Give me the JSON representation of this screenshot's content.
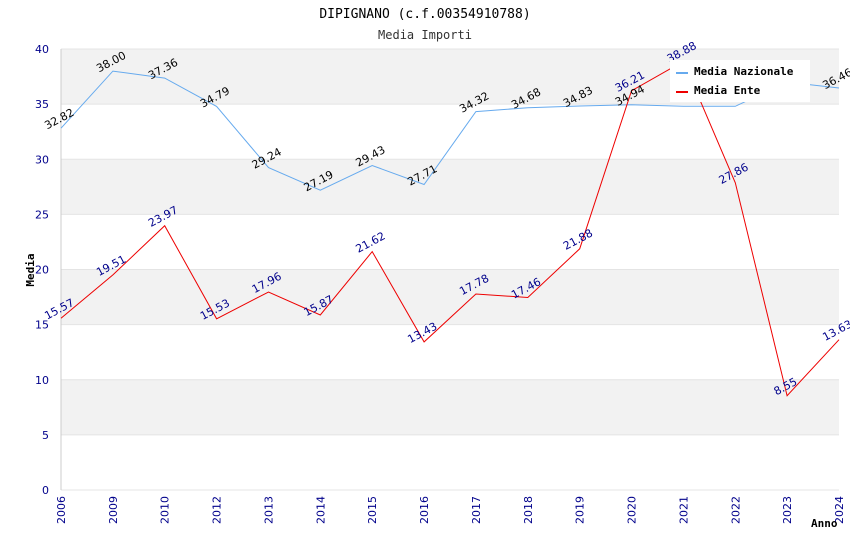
{
  "chart_data": {
    "type": "line",
    "title": "DIPIGNANO (c.f.00354910788)",
    "subtitle": "Media Importi",
    "xlabel": "Anno",
    "ylabel": "Media",
    "ylim": [
      0,
      40
    ],
    "yticks": [
      0,
      5,
      10,
      15,
      20,
      25,
      30,
      35,
      40
    ],
    "grid": "horizontal alternating bands",
    "legend_position": "top-right",
    "categories": [
      "2006",
      "2009",
      "2010",
      "2012",
      "2013",
      "2014",
      "2015",
      "2016",
      "2017",
      "2018",
      "2019",
      "2020",
      "2021",
      "2022",
      "2023",
      "2024"
    ],
    "series": [
      {
        "name": "Media Nazionale",
        "color": "#66aaee",
        "values": [
          32.82,
          38.0,
          37.36,
          34.79,
          29.24,
          27.19,
          29.43,
          27.71,
          34.32,
          34.68,
          34.83,
          34.94,
          34.8,
          34.8,
          37.0,
          36.46
        ],
        "labels": [
          "32.82",
          "38.00",
          "37.36",
          "34.79",
          "29.24",
          "27.19",
          "29.43",
          "27.71",
          "34.32",
          "34.68",
          "34.83",
          "34.94",
          "",
          "",
          "",
          "36.46"
        ]
      },
      {
        "name": "Media Ente",
        "color": "#ee0000",
        "values": [
          15.57,
          19.51,
          23.97,
          15.53,
          17.96,
          15.87,
          21.62,
          13.43,
          17.78,
          17.46,
          21.88,
          36.21,
          38.88,
          27.86,
          8.55,
          13.63
        ],
        "labels": [
          "15.57",
          "19.51",
          "23.97",
          "15.53",
          "17.96",
          "15.87",
          "21.62",
          "13.43",
          "17.78",
          "17.46",
          "21.88",
          "36.21",
          "38.88",
          "27.86",
          "8.55",
          "13.63"
        ]
      }
    ]
  }
}
